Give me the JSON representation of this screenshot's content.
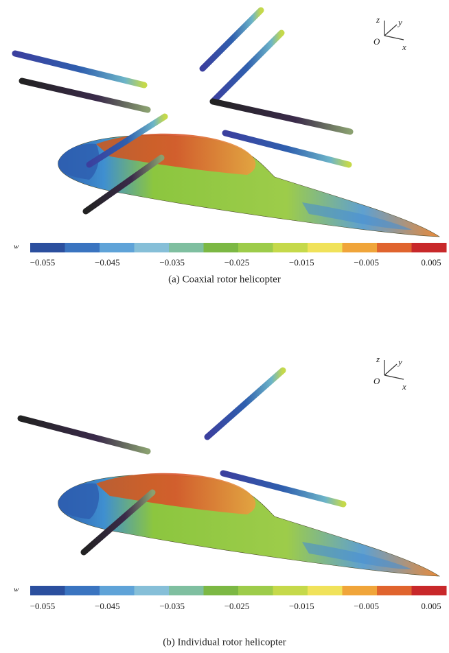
{
  "panels": [
    {
      "axes": {
        "z": "z",
        "y": "y",
        "origin": "O",
        "x": "x"
      },
      "colorbar": {
        "label": "w",
        "ticks": [
          "−0.055",
          "−0.045",
          "−0.035",
          "−0.025",
          "−0.015",
          "−0.005",
          "0.005"
        ]
      },
      "caption": "(a) Coaxial rotor helicopter"
    },
    {
      "axes": {
        "z": "z",
        "y": "y",
        "origin": "O",
        "x": "x"
      },
      "colorbar": {
        "label": "w",
        "ticks": [
          "−0.055",
          "−0.045",
          "−0.035",
          "−0.025",
          "−0.015",
          "−0.005",
          "0.005"
        ]
      },
      "caption": "(b) Individual rotor helicopter"
    }
  ]
}
